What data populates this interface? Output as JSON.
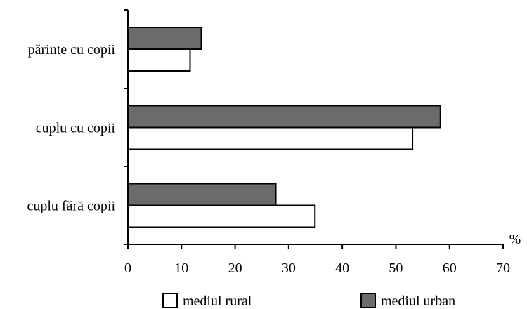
{
  "chart_data": {
    "type": "bar",
    "orientation": "horizontal",
    "categories": [
      "părinte cu copii",
      "cuplu cu copii",
      "cuplu fără copii"
    ],
    "series": [
      {
        "name": "mediul urban",
        "values": [
          13.7,
          58.3,
          27.6
        ],
        "color": "#6b6b6b"
      },
      {
        "name": "mediul rural",
        "values": [
          11.6,
          53.1,
          34.9
        ],
        "color": "#ffffff"
      }
    ],
    "legend_order": [
      "mediul rural",
      "mediul urban"
    ],
    "xlim": [
      0,
      70
    ],
    "xticks": [
      0,
      10,
      20,
      30,
      40,
      50,
      60,
      70
    ],
    "x_unit": "%",
    "title": "",
    "xlabel": "",
    "ylabel": "",
    "grid": false,
    "legend_position": "bottom"
  }
}
